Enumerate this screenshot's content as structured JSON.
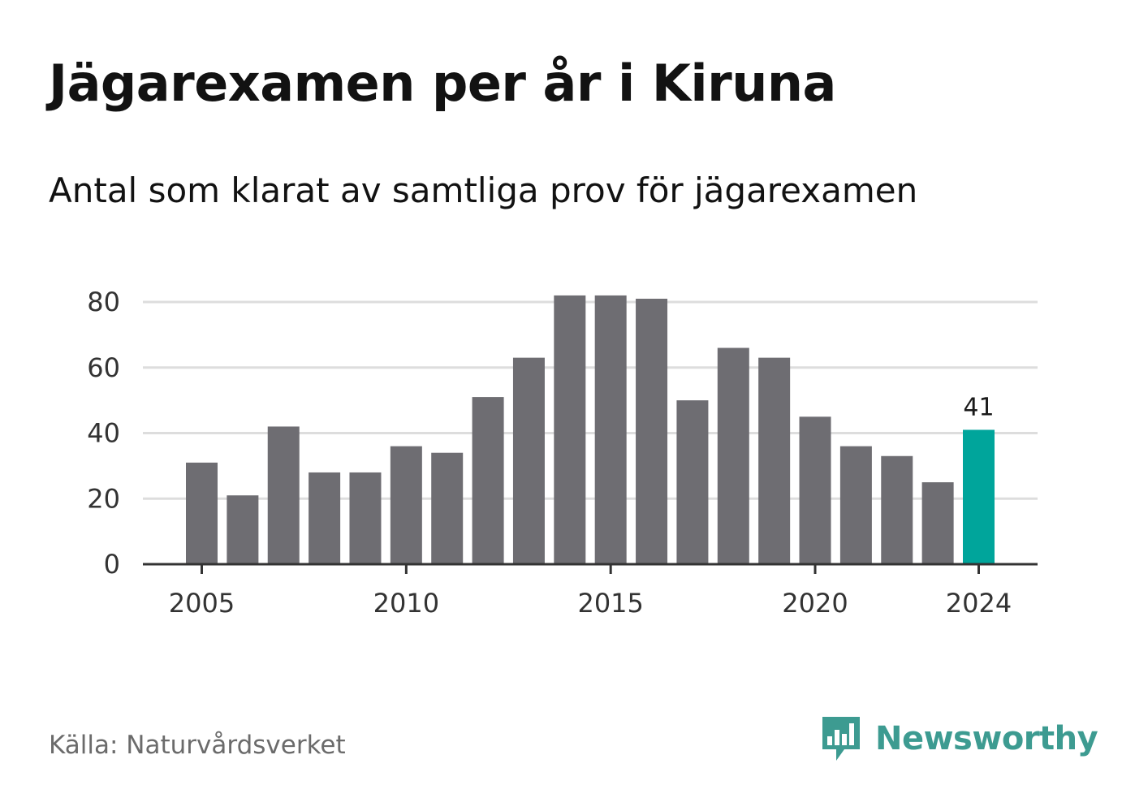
{
  "title": "Jägarexamen per år i Kiruna",
  "subtitle": "Antal som klarat av samtliga prov för jägarexamen",
  "source": "Källa: Naturvårdsverket",
  "brand": {
    "name": "Newsworthy",
    "icon": "bar-chart-speech-bubble-icon",
    "color": "#3d9b91"
  },
  "colors": {
    "bar": "#6e6d72",
    "highlight": "#00a59b",
    "grid": "#dddddd",
    "axis": "#333333"
  },
  "chart_data": {
    "type": "bar",
    "categories": [
      2005,
      2006,
      2007,
      2008,
      2009,
      2010,
      2011,
      2012,
      2013,
      2014,
      2015,
      2016,
      2017,
      2018,
      2019,
      2020,
      2021,
      2022,
      2023,
      2024
    ],
    "values": [
      31,
      21,
      42,
      28,
      28,
      36,
      34,
      51,
      63,
      82,
      82,
      81,
      50,
      66,
      63,
      45,
      36,
      33,
      25,
      41
    ],
    "highlight_index": 19,
    "highlight_label": "41",
    "x_ticks": [
      "2005",
      "2010",
      "2015",
      "2020",
      "2024"
    ],
    "y_ticks": [
      "0",
      "20",
      "40",
      "60",
      "80"
    ],
    "ylim": [
      0,
      80
    ],
    "grid": true,
    "legend": "none"
  }
}
